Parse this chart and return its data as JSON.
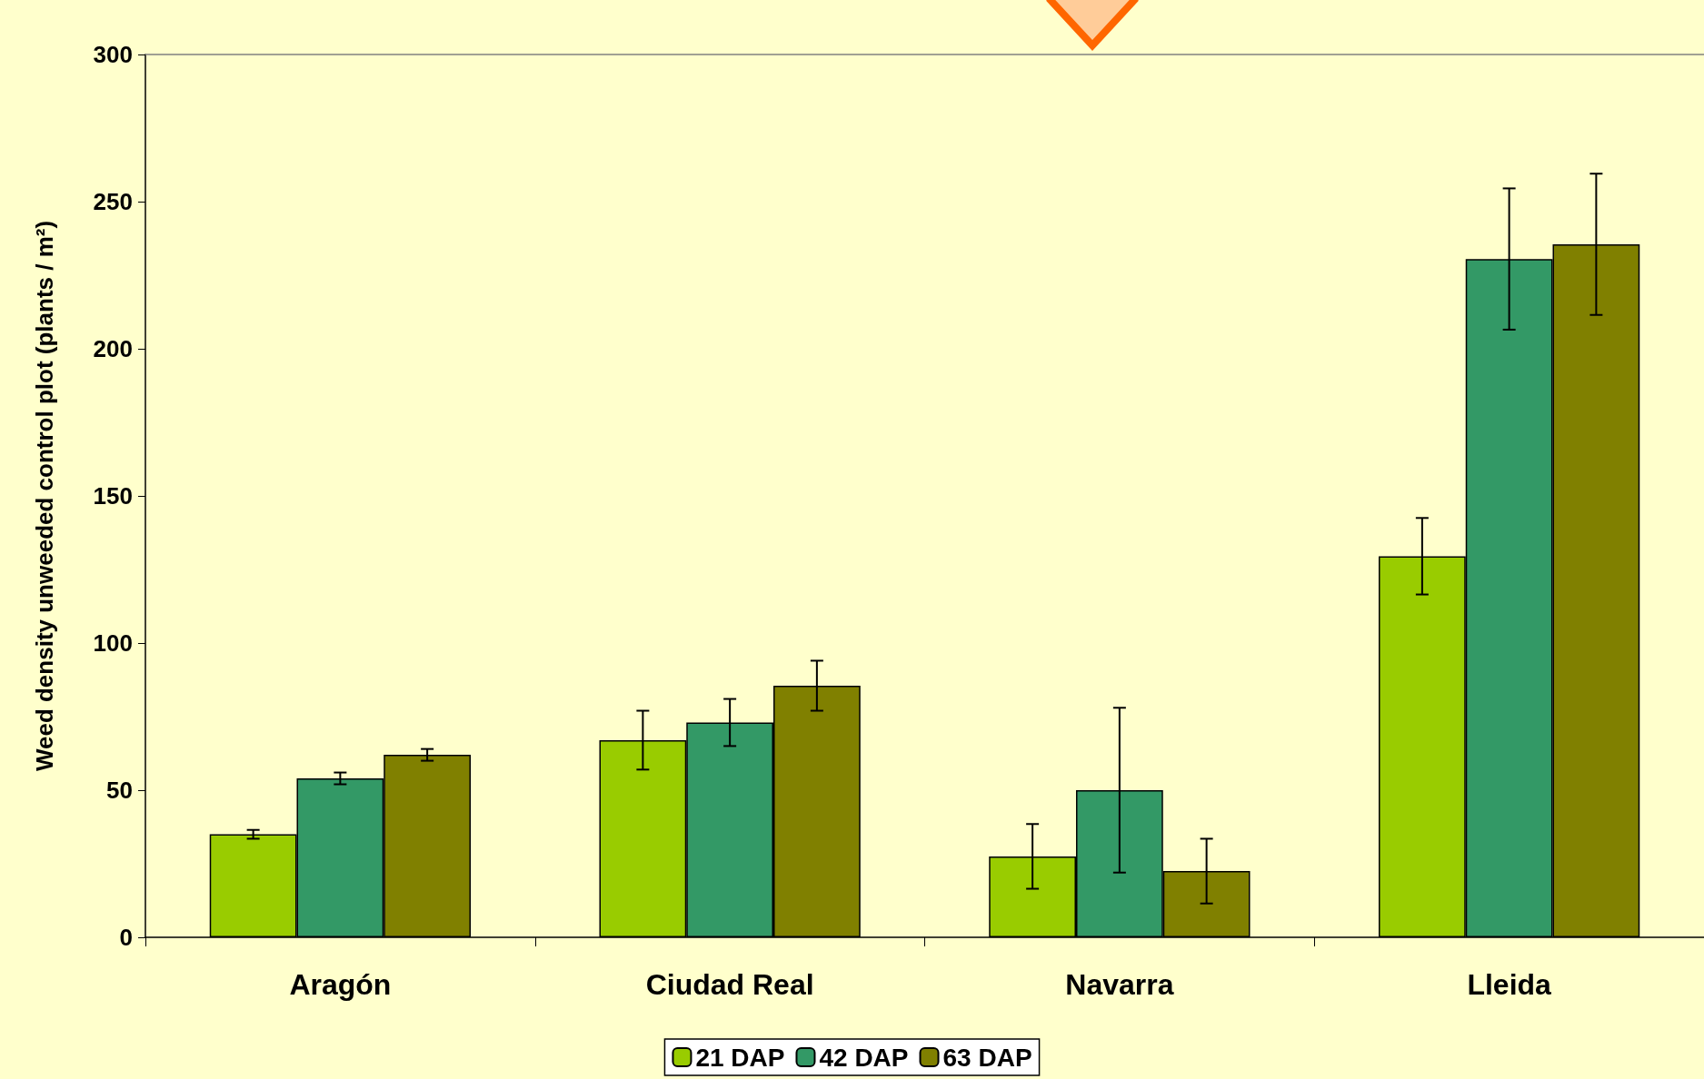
{
  "chart_data": {
    "type": "bar",
    "ylabel": "Weed density unweeded control plot (plants / m²)",
    "categories": [
      "Aragón",
      "Ciudad Real",
      "Navarra",
      "Lleida"
    ],
    "series": [
      {
        "name": "21 DAP",
        "color": "#99cc00",
        "values": [
          35,
          67,
          27.5,
          129.5
        ],
        "errors": [
          1.5,
          10,
          11,
          13
        ]
      },
      {
        "name": "42 DAP",
        "color": "#339966",
        "values": [
          54,
          73,
          50,
          230.5
        ],
        "errors": [
          2,
          8,
          28,
          24
        ]
      },
      {
        "name": "63 DAP",
        "color": "#808000",
        "values": [
          62,
          85.5,
          22.5,
          235.5
        ],
        "errors": [
          2,
          8.5,
          11,
          24
        ]
      }
    ],
    "ylim": [
      0,
      300
    ],
    "yticks": [
      0,
      50,
      100,
      150,
      200,
      250,
      300
    ],
    "grid": false,
    "legend": "bottom"
  }
}
